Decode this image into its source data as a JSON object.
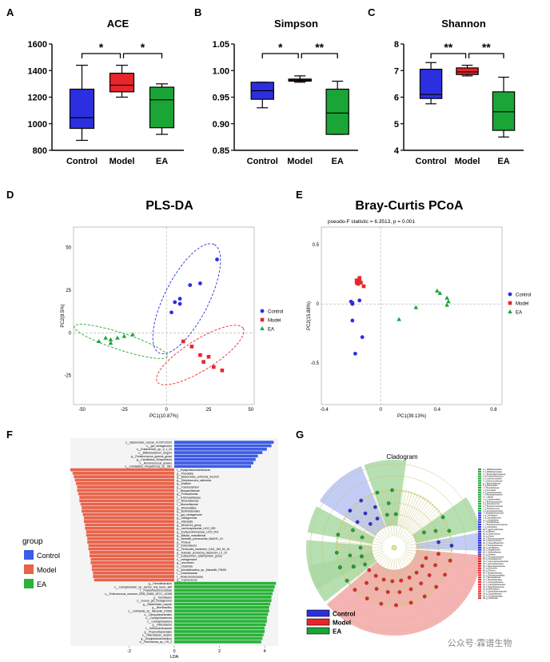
{
  "panels": {
    "A": "A",
    "B": "B",
    "C": "C",
    "D": "D",
    "E": "E",
    "F": "F",
    "G": "G"
  },
  "colors": {
    "control": "#2c2fe0",
    "model": "#e8252a",
    "ea": "#1aa536",
    "lefse_model": "#e9634a",
    "lefse_ea": "#2ab33a",
    "lefse_control": "#3d5ce6"
  },
  "chart_data": [
    {
      "type": "box",
      "id": "ace",
      "title": "ACE",
      "categories": [
        "Control",
        "Model",
        "EA"
      ],
      "ylim": [
        800,
        1600
      ],
      "yticks": [
        800,
        1000,
        1200,
        1400,
        1600
      ],
      "boxes": [
        {
          "name": "Control",
          "min": 875,
          "q1": 965,
          "median": 1045,
          "q3": 1260,
          "max": 1440
        },
        {
          "name": "Model",
          "min": 1200,
          "q1": 1240,
          "median": 1290,
          "q3": 1380,
          "max": 1440
        },
        {
          "name": "EA",
          "min": 920,
          "q1": 970,
          "median": 1180,
          "q3": 1275,
          "max": 1300
        }
      ],
      "significance": [
        {
          "from": 0,
          "to": 1,
          "label": "*"
        },
        {
          "from": 1,
          "to": 2,
          "label": "*"
        }
      ]
    },
    {
      "type": "box",
      "id": "simpson",
      "title": "Simpson",
      "categories": [
        "Control",
        "Model",
        "EA"
      ],
      "ylim": [
        0.85,
        1.05
      ],
      "yticks": [
        0.85,
        0.9,
        0.95,
        1.0,
        1.05
      ],
      "ytick_labels": [
        "0.85",
        "0.90",
        "0.95",
        "1.00",
        "1.05"
      ],
      "boxes": [
        {
          "name": "Control",
          "min": 0.93,
          "q1": 0.946,
          "median": 0.962,
          "q3": 0.978,
          "max": 0.978
        },
        {
          "name": "Model",
          "min": 0.978,
          "q1": 0.98,
          "median": 0.982,
          "q3": 0.984,
          "max": 0.99
        },
        {
          "name": "EA",
          "min": 0.88,
          "q1": 0.88,
          "median": 0.92,
          "q3": 0.965,
          "max": 0.98
        }
      ],
      "significance": [
        {
          "from": 0,
          "to": 1,
          "label": "*"
        },
        {
          "from": 1,
          "to": 2,
          "label": "**"
        }
      ]
    },
    {
      "type": "box",
      "id": "shannon",
      "title": "Shannon",
      "categories": [
        "Control",
        "Model",
        "EA"
      ],
      "ylim": [
        4,
        8
      ],
      "yticks": [
        4,
        5,
        6,
        7,
        8
      ],
      "boxes": [
        {
          "name": "Control",
          "min": 5.75,
          "q1": 5.95,
          "median": 6.1,
          "q3": 7.05,
          "max": 7.3
        },
        {
          "name": "Model",
          "min": 6.8,
          "q1": 6.85,
          "median": 6.95,
          "q3": 7.1,
          "max": 7.2
        },
        {
          "name": "EA",
          "min": 4.5,
          "q1": 4.75,
          "median": 5.45,
          "q3": 6.2,
          "max": 6.75
        }
      ],
      "significance": [
        {
          "from": 0,
          "to": 1,
          "label": "**"
        },
        {
          "from": 1,
          "to": 2,
          "label": "**"
        }
      ]
    },
    {
      "type": "scatter",
      "id": "plsda",
      "title": "PLS-DA",
      "xlabel": "PC1(10.87%)",
      "ylabel": "PC2(8.5%)",
      "xlim": [
        -55,
        52
      ],
      "ylim": [
        -42,
        62
      ],
      "xticks": [
        -50,
        -25,
        0,
        25,
        50
      ],
      "yticks": [
        -25,
        0,
        25,
        50
      ],
      "legend": [
        "Control",
        "Model",
        "EA"
      ],
      "series": [
        {
          "name": "Control",
          "marker": "circle",
          "points": [
            [
              14,
              28
            ],
            [
              8,
              20
            ],
            [
              20,
              29
            ],
            [
              5,
              18
            ],
            [
              30,
              43
            ],
            [
              8,
              17
            ],
            [
              3,
              12
            ]
          ]
        },
        {
          "name": "Model",
          "marker": "square",
          "points": [
            [
              10,
              -5
            ],
            [
              15,
              -8
            ],
            [
              20,
              -13
            ],
            [
              22,
              -17
            ],
            [
              25,
              -14
            ],
            [
              28,
              -20
            ],
            [
              33,
              -22
            ]
          ]
        },
        {
          "name": "EA",
          "marker": "triangle",
          "points": [
            [
              -40,
              -5
            ],
            [
              -36,
              -3
            ],
            [
              -33,
              -4
            ],
            [
              -29,
              -3
            ],
            [
              -25,
              -2
            ],
            [
              -20,
              -1
            ],
            [
              -33,
              -6
            ]
          ]
        }
      ],
      "ellipses": [
        {
          "group": "Control",
          "cx": 12,
          "cy": 20,
          "rx": 36,
          "ry": 13,
          "angle": -63
        },
        {
          "group": "Model",
          "cx": 20,
          "cy": -13,
          "rx": 30,
          "ry": 9,
          "angle": -32
        },
        {
          "group": "EA",
          "cx": -27,
          "cy": -5,
          "rx": 29,
          "ry": 5,
          "angle": 18
        }
      ]
    },
    {
      "type": "scatter",
      "id": "pcoa",
      "title": "Bray-Curtis PCoA",
      "subtitle": "pseudo-F statistic = 6.3513, p = 0.001",
      "xlabel": "PC1(39.13%)",
      "ylabel": "PC2(15.88%)",
      "xlim": [
        -0.42,
        0.86
      ],
      "ylim": [
        -0.85,
        0.65
      ],
      "xticks": [
        -0.4,
        0,
        0.4,
        0.8
      ],
      "xtick_labels": [
        "-0.4",
        "0",
        "0.4",
        "0.8"
      ],
      "yticks": [
        -0.5,
        0,
        0.5
      ],
      "ytick_labels": [
        "-0.5",
        "0",
        "0.5"
      ],
      "legend": [
        "Control",
        "Model",
        "EA"
      ],
      "series": [
        {
          "name": "Control",
          "marker": "circle",
          "points": [
            [
              -0.21,
              0.02
            ],
            [
              -0.2,
              0.0
            ],
            [
              -0.15,
              0.03
            ],
            [
              -0.2,
              -0.14
            ],
            [
              -0.13,
              -0.28
            ],
            [
              -0.18,
              -0.42
            ],
            [
              -0.2,
              0.01
            ]
          ]
        },
        {
          "name": "Model",
          "marker": "square",
          "points": [
            [
              -0.17,
              0.2
            ],
            [
              -0.15,
              0.22
            ],
            [
              -0.16,
              0.17
            ],
            [
              -0.17,
              0.18
            ],
            [
              -0.14,
              0.18
            ],
            [
              -0.12,
              0.15
            ],
            [
              -0.15,
              0.19
            ]
          ]
        },
        {
          "name": "EA",
          "marker": "triangle",
          "points": [
            [
              0.13,
              -0.13
            ],
            [
              0.25,
              -0.03
            ],
            [
              0.4,
              0.11
            ],
            [
              0.47,
              0.05
            ],
            [
              0.48,
              0.02
            ],
            [
              0.47,
              -0.01
            ],
            [
              0.42,
              0.09
            ]
          ]
        }
      ]
    },
    {
      "type": "bar",
      "id": "lefse",
      "orientation": "horizontal",
      "xlabel": "LDA",
      "xlim": [
        -4.6,
        4.6
      ],
      "xticks": [
        -2,
        0,
        2,
        4
      ],
      "legend_title": "group",
      "legend": [
        "Control",
        "Model",
        "EA"
      ],
      "bars": [
        {
          "label": "s__Bacteroides_caccae_CL03T12C61",
          "group": "Control",
          "value": 4.4
        },
        {
          "label": "s__gut_metagenome",
          "group": "Control",
          "value": 4.3
        },
        {
          "label": "s__Eubacterium_sp._3_1_31",
          "group": "Control",
          "value": 4.1
        },
        {
          "label": "s__Bifidobacterium_longum",
          "group": "Control",
          "value": 3.9
        },
        {
          "label": "g__Ruminococcus_gnavus_group",
          "group": "Control",
          "value": 3.7
        },
        {
          "label": "g__Candidatus_Stoquefichus",
          "group": "Control",
          "value": 3.6
        },
        {
          "label": "s__Ruminococcus_gnavus",
          "group": "Control",
          "value": 3.5
        },
        {
          "label": "s__Candidatus_Stoquefichus_sp._SB1",
          "group": "Control",
          "value": 3.4
        },
        {
          "label": "f__Erysipelatoclostridiaceae",
          "group": "Model",
          "value": -4.6
        },
        {
          "label": "g__Prevotella",
          "group": "Model",
          "value": -4.5
        },
        {
          "label": "g__Bacteroides_uniformis_dnLKV2",
          "group": "Model",
          "value": -4.45
        },
        {
          "label": "g__Streptococcus_salivarius",
          "group": "Model",
          "value": -4.4
        },
        {
          "label": "g__Dialister",
          "group": "Model",
          "value": -4.35
        },
        {
          "label": "g__Fusobacterium",
          "group": "Model",
          "value": -4.3
        },
        {
          "label": "f__Morganellaceae",
          "group": "Model",
          "value": -4.3
        },
        {
          "label": "g__Porasulfurella",
          "group": "Model",
          "value": -4.25
        },
        {
          "label": "f__S-Moraxellaceae",
          "group": "Model",
          "value": -4.2
        },
        {
          "label": "s__Moraxellaceae",
          "group": "Model",
          "value": -4.2
        },
        {
          "label": "f__Moraxellaceae",
          "group": "Model",
          "value": -4.15
        },
        {
          "label": "g__Moraxellales",
          "group": "Model",
          "value": -4.1
        },
        {
          "label": "g__Burkholderiales",
          "group": "Model",
          "value": -4.1
        },
        {
          "label": "s__gut_metagenome",
          "group": "Model",
          "value": -4.05
        },
        {
          "label": "g__metagenome",
          "group": "Model",
          "value": -4.0
        },
        {
          "label": "g__Klebsiella",
          "group": "Model",
          "value": -4.0
        },
        {
          "label": "g__NK4A214_group",
          "group": "Model",
          "value": -3.95
        },
        {
          "label": "g__Lachnospiraceae_UCG_009",
          "group": "Model",
          "value": -3.95
        },
        {
          "label": "g__Erysipelotrichaceae_UCG_003",
          "group": "Model",
          "value": -3.9
        },
        {
          "label": "g__Blautia_massiliensis",
          "group": "Model",
          "value": -3.9
        },
        {
          "label": "g__Barbella_pneumoniae_BADHC_01",
          "group": "Model",
          "value": -3.85
        },
        {
          "label": "g__Proteus",
          "group": "Model",
          "value": -3.85
        },
        {
          "label": "g__Enterobactor",
          "group": "Model",
          "value": -3.8
        },
        {
          "label": "g__Firmicutes_bacterium_CAG_184_54_16",
          "group": "Model",
          "value": -3.8
        },
        {
          "label": "g__butyrate_producing_bacterium_L2_10",
          "group": "Model",
          "value": -3.75
        },
        {
          "label": "s__Eubacterium_xylanophilum_group",
          "group": "Model",
          "value": -3.75
        },
        {
          "label": "s__metagenome",
          "group": "Model",
          "value": -3.7
        },
        {
          "label": "g__uncultured",
          "group": "Model",
          "value": -3.7
        },
        {
          "label": "s__Clostridia",
          "group": "Model",
          "value": -3.65
        },
        {
          "label": "s__Intestinibacillus_sp._Marseille_P4005",
          "group": "Model",
          "value": -3.65
        },
        {
          "label": "f__Clostridiaceae",
          "group": "Model",
          "value": -3.6
        },
        {
          "label": "f__Anaerovoracaceae",
          "group": "Model",
          "value": -3.6
        },
        {
          "label": "g__Coprococcus",
          "group": "Model",
          "value": -3.55
        },
        {
          "label": "g__Faecalibaculum",
          "group": "EA",
          "value": 4.5
        },
        {
          "label": "s__Campylobacter_sp._canine_oral_taxon_380",
          "group": "EA",
          "value": 4.45
        },
        {
          "label": "f__Peptostreptococcaceae",
          "group": "EA",
          "value": 4.4
        },
        {
          "label": "s__Enterococcus_cecorum_DSM_20682_ATCC_43198",
          "group": "EA",
          "value": 4.35
        },
        {
          "label": "g__Turicibacter",
          "group": "EA",
          "value": 4.3
        },
        {
          "label": "s__mouse_gut_metagenome",
          "group": "EA",
          "value": 4.3
        },
        {
          "label": "g__Bacteroides_caccae",
          "group": "EA",
          "value": 4.25
        },
        {
          "label": "g__Brevibacillus",
          "group": "EA",
          "value": 4.2
        },
        {
          "label": "s__Collinsella_sp._Marseille_P2666",
          "group": "EA",
          "value": 4.2
        },
        {
          "label": "o__Campylobacterales",
          "group": "EA",
          "value": 4.15
        },
        {
          "label": "c__Campylobacterota",
          "group": "EA",
          "value": 4.1
        },
        {
          "label": "c__Campylobacteria",
          "group": "EA",
          "value": 4.1
        },
        {
          "label": "g__Helicobacter",
          "group": "EA",
          "value": 4.05
        },
        {
          "label": "f__Helicobacteraceae",
          "group": "EA",
          "value": 4.0
        },
        {
          "label": "g__Propionibacteriales",
          "group": "EA",
          "value": 4.0
        },
        {
          "label": "s__Helicobacter_anseris",
          "group": "EA",
          "value": 3.95
        },
        {
          "label": "g__Erysipelatoclostridium",
          "group": "EA",
          "value": 3.9
        },
        {
          "label": "s__Parvimonas_sp._CH_2",
          "group": "EA",
          "value": 3.85
        }
      ]
    },
    {
      "type": "cladogram",
      "id": "cladogram",
      "title": "Cladogram",
      "legend": [
        "Control",
        "Model",
        "EA"
      ],
      "sectors": [
        {
          "group": "EA",
          "start": -118,
          "end": -85
        },
        {
          "group": "EA",
          "start": -80,
          "end": -62
        },
        {
          "group": "Control",
          "start": -58,
          "end": -22
        },
        {
          "group": "EA",
          "start": -20,
          "end": 8
        },
        {
          "group": "EA",
          "start": 55,
          "end": 78
        },
        {
          "group": "Control",
          "start": 80,
          "end": 92
        },
        {
          "group": "Model",
          "start": 95,
          "end": 230
        },
        {
          "group": "EA",
          "start": 232,
          "end": 258
        }
      ],
      "legend_list": [
        "a: c_Bifidobacteriales",
        "b: o_Bifidobacteriales",
        "c: f_Propionibacteriaceae",
        "d: g_Propionibacterium",
        "e: o_Actinomycetales",
        "f: f_Actinomycetaceae",
        "g: f_Bacteroidaceae",
        "h: g_Bacteroides",
        "i: f_Prevotellaceae",
        "j: g_Prevotella",
        "k: o_Flavobacteriales",
        "l: f_Flavobacteriaceae",
        "m: c_Bacilli",
        "n: o_Lactobacillales",
        "o: f_Enterococcaceae",
        "p: g_Enterococcus",
        "q: f_Streptococcaceae",
        "r: g_Streptococcus",
        "s: o_Erysipelotrichales",
        "t: f_Erysipelotrichaceae",
        "u: g_Turicibacter",
        "v: g_Faecalibaculum",
        "w: o_Clostridiales",
        "x: f_Clostridiaceae",
        "y: f_Peptostreptococcaceae",
        "z: g_Clostridium",
        "a0: f_Lachnospiraceae",
        "a1: g_Blautia",
        "a2: g_Coprococcus",
        "a3: g_Dorea",
        "a4: f_Ruminococcaceae",
        "a5: g_Ruminococcus",
        "a6: g_Faecalibacterium",
        "a7: f_Oscillospiraceae",
        "a8: g_Oscillibacter",
        "a9: c_Negativicutes",
        "b0: f_Veillonellaceae",
        "b1: g_Dialister",
        "b2: f_Fusobacteriaceae",
        "b3: g_Fusobacterium",
        "b4: c_Gammaproteobacteria",
        "b5: o_Enterobacterales",
        "b6: f_Enterobacteriaceae",
        "b7: g_Klebsiella",
        "b8: g_Proteus",
        "b9: f_Morganellaceae",
        "c0: o_Pseudomonadales",
        "c1: f_Moraxellaceae",
        "c2: o_Burkholderiales",
        "c3: c_Campylobacteria",
        "c4: o_Campylobacterales",
        "c5: f_Helicobacteraceae",
        "c6: g_Helicobacter",
        "c7: f_Campylobacteraceae",
        "c8: g_Campylobacter",
        "c9: o_Coriobacteriales",
        "d0: g_Collinsella"
      ]
    }
  ],
  "watermark": "公众号·霖谱生物"
}
